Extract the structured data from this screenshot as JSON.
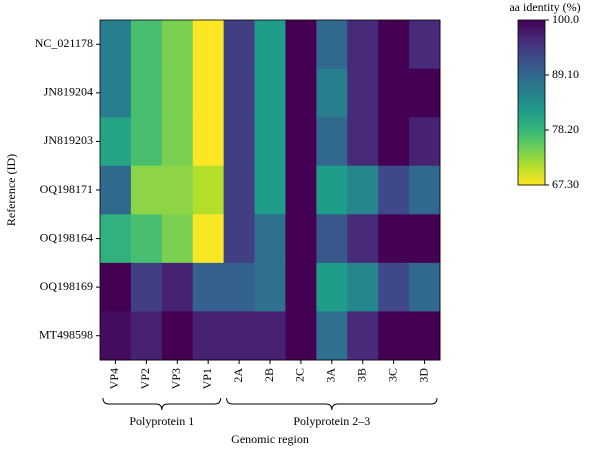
{
  "chart_data": {
    "type": "heatmap",
    "xlabel": "Genomic region",
    "ylabel": "Reference (ID)",
    "colorbar_label": "aa identity (%)",
    "colormap": "viridis_r",
    "categories": [
      "VP4",
      "VP2",
      "VP3",
      "VP1",
      "2A",
      "2B",
      "2C",
      "3A",
      "3B",
      "3C",
      "3D"
    ],
    "rows": [
      "NC_021178",
      "JN819204",
      "JN819203",
      "OQ198171",
      "OQ198164",
      "OQ198169",
      "MT498598"
    ],
    "groups": [
      "Polyprotein 1",
      "Polyprotein 2–3"
    ],
    "values": [
      [
        86,
        77,
        74,
        67.3,
        94,
        82,
        100,
        89,
        96,
        100,
        96
      ],
      [
        86,
        77,
        74,
        67.3,
        94,
        82,
        100,
        86,
        96,
        100,
        100
      ],
      [
        81,
        77,
        74,
        67.3,
        94,
        82,
        100,
        89,
        96,
        100,
        97
      ],
      [
        89,
        73,
        73,
        71,
        94,
        82,
        100,
        82,
        85,
        93,
        89
      ],
      [
        79,
        77,
        74,
        67.5,
        94,
        88,
        100,
        91,
        96,
        100,
        100
      ],
      [
        100,
        94,
        97,
        90,
        90,
        88,
        100,
        82,
        85,
        93,
        89
      ],
      [
        99,
        97,
        100,
        97,
        97,
        97,
        100,
        88,
        96,
        100,
        100
      ]
    ],
    "clim": [
      67.3,
      100
    ],
    "cticks": [
      {
        "value": 100,
        "label": "100.0"
      },
      {
        "value": 89.1,
        "label": "89.10"
      },
      {
        "value": 78.2,
        "label": "78.20"
      },
      {
        "value": 67.3,
        "label": "67.30"
      }
    ]
  }
}
